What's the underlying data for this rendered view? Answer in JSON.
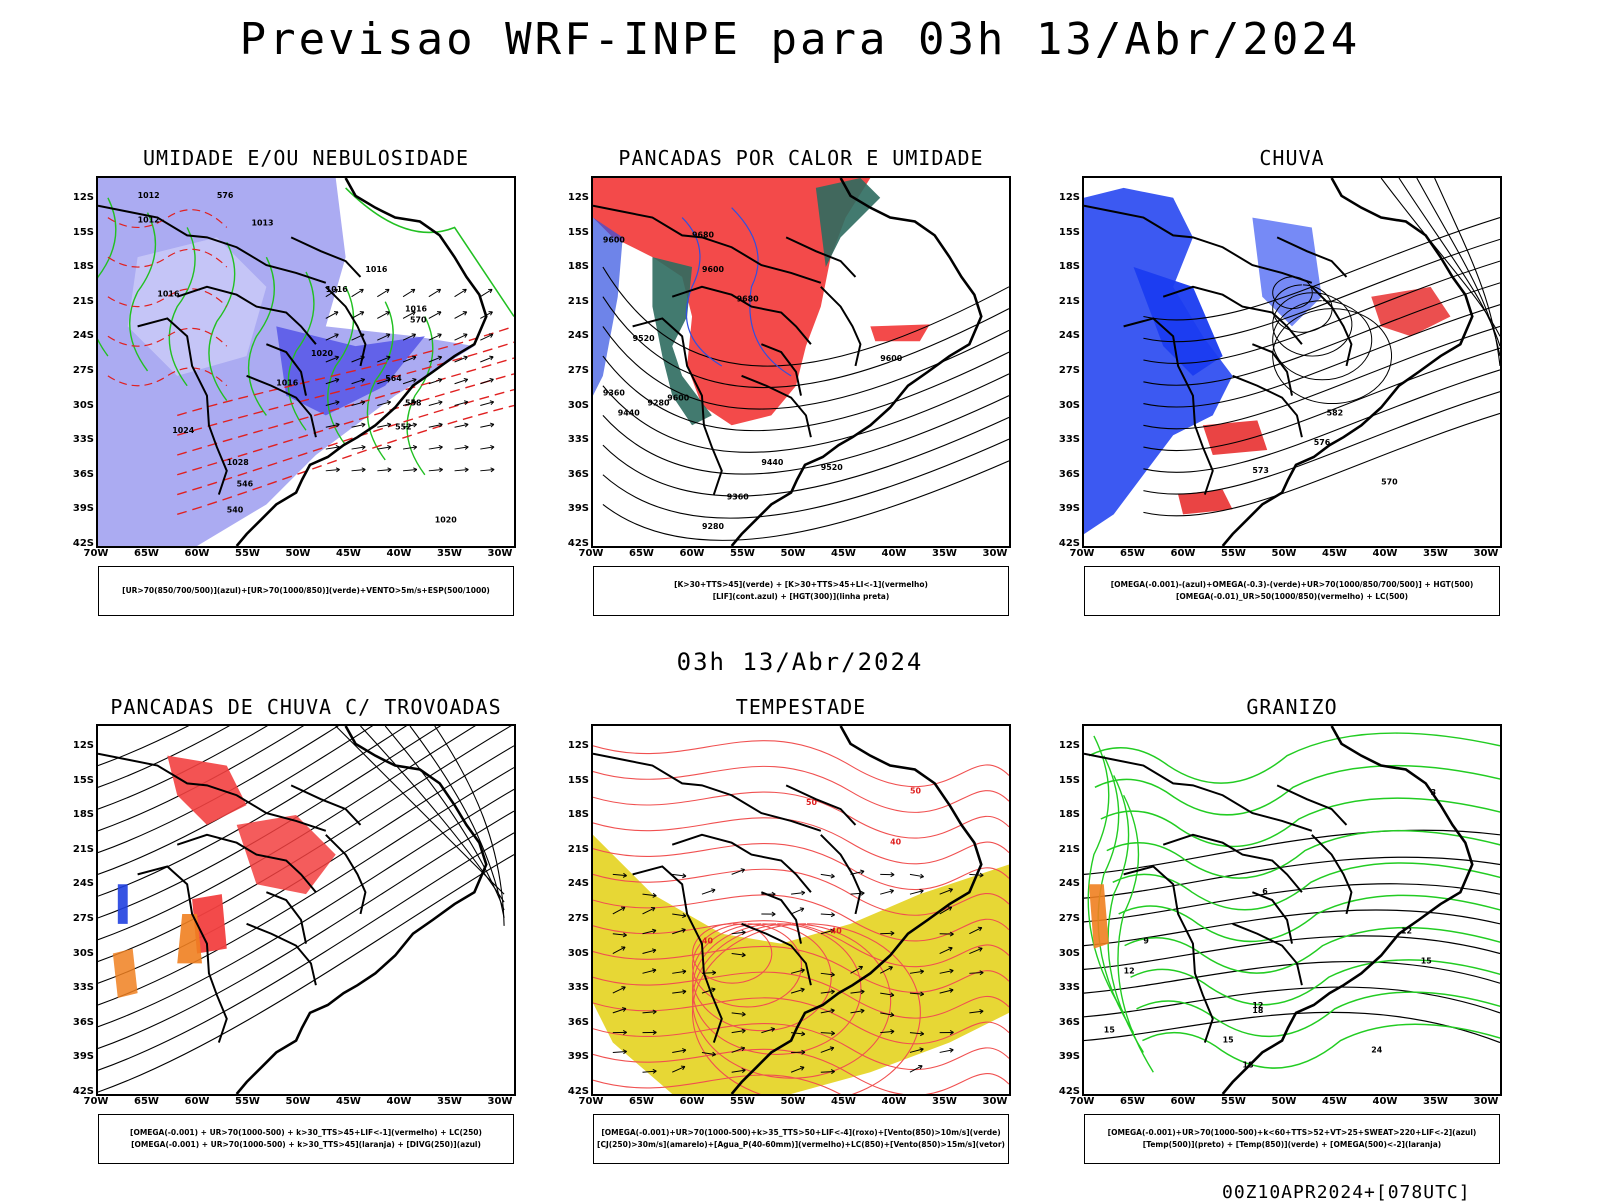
{
  "main_title": "Previsao WRF-INPE  para 03h 13/Abr/2024",
  "mid_title": "03h 13/Abr/2024",
  "footer": "00Z10APR2024+[078UTC]",
  "lat_labels": [
    "12S",
    "15S",
    "18S",
    "21S",
    "24S",
    "27S",
    "30S",
    "33S",
    "36S",
    "39S",
    "42S"
  ],
  "lon_labels": [
    "70W",
    "65W",
    "60W",
    "55W",
    "50W",
    "45W",
    "40W",
    "35W",
    "30W"
  ],
  "panels": [
    {
      "title": "UMIDADE E/OU NEBULOSIDADE",
      "legend": [
        "[UR>70(850/700/500)](azul)+[UR>70(1000/850)](verde)+VENTO>5m/s+ESP(500/1000)"
      ],
      "labels": [
        "1012",
        "1012",
        "1013",
        "1016",
        "1016",
        "1016",
        "1016",
        "1020",
        "1024",
        "1028",
        "1016",
        "576",
        "570",
        "564",
        "558",
        "552",
        "546",
        "540",
        "1020"
      ]
    },
    {
      "title": "PANCADAS POR CALOR E UMIDADE",
      "legend": [
        "[K>30+TTS>45](verde) + [K>30+TTS>45+LI<-1](vermelho)",
        "[LIF](cont.azul) + [HGT(300)](linha preta)"
      ],
      "labels": [
        "9600",
        "9680",
        "9600",
        "9520",
        "9440",
        "9360",
        "9280",
        "9600",
        "9520",
        "9440",
        "9360",
        "9280",
        "9600",
        "9680"
      ]
    },
    {
      "title": "CHUVA",
      "legend": [
        "[OMEGA(-0.001)-(azul)+OMEGA(-0.3)-(verde)+UR>70(1000/850/700/500)] + HGT(500)",
        "[OMEGA(-0.01)_UR>50(1000/850)(vermelho) + LC(500)"
      ],
      "labels": [
        "582",
        "576",
        "573",
        "570"
      ]
    },
    {
      "title": "PANCADAS DE CHUVA C/ TROVOADAS",
      "legend": [
        "[OMEGA(-0.001) + UR>70(1000-500) + k>30_TTS>45+LIF<-1](vermelho) + LC(250)",
        "[OMEGA(-0.001) + UR>70(1000-500) + k>30_TTS>45](laranja) + [DIVG(250)](azul)"
      ],
      "labels": []
    },
    {
      "title": "TEMPESTADE",
      "legend": [
        "[OMEGA(-0.001)+UR>70(1000-500)+k>35_TTS>50+LIF<-4](roxo)+[Vento(850)>10m/s](verde)",
        "[CJ(250)>30m/s](amarelo)+[Agua_P(40-60mm)](vermelho)+LC(850)+[Vento(850)>15m/s](vetor)"
      ],
      "labels": [
        "50",
        "40",
        "40",
        "40",
        "50"
      ]
    },
    {
      "title": "GRANIZO",
      "legend": [
        "[OMEGA(-0.001)+UR>70(1000-500)+k<60+TTS>52+VT>25+SWEAT>220+LIF<-2](azul)",
        "[Temp(500)](preto) + [Temp(850)](verde) + [OMEGA(500)<-2](laranja)"
      ],
      "labels": [
        "3",
        "6",
        "9",
        "12",
        "15",
        "18",
        "12",
        "15",
        "18",
        "24",
        "15",
        "12"
      ]
    }
  ]
}
